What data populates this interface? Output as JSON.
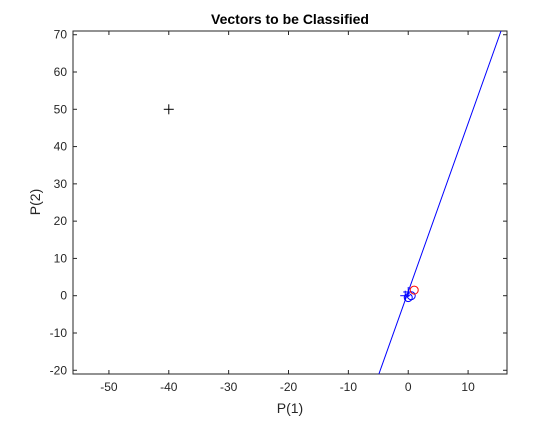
{
  "chart_data": {
    "type": "scatter",
    "title": "Vectors to be Classified",
    "xlabel": "P(1)",
    "ylabel": "P(2)",
    "xlim": [
      -56,
      16.5
    ],
    "ylim": [
      -21,
      71
    ],
    "xticks": [
      -50,
      -40,
      -30,
      -20,
      -10,
      0,
      10
    ],
    "yticks": [
      -20,
      -10,
      0,
      10,
      20,
      30,
      40,
      50,
      60,
      70
    ],
    "grid": false,
    "legend": "none",
    "series": [
      {
        "marker": "plus",
        "color": "#000000",
        "points": [
          [
            -40,
            50
          ]
        ]
      },
      {
        "marker": "plus",
        "color": "#0000ff",
        "points": [
          [
            -0.5,
            0
          ],
          [
            0,
            1
          ]
        ]
      },
      {
        "marker": "circle",
        "color": "#0000ff",
        "points": [
          [
            0,
            -0.5
          ],
          [
            0.5,
            0
          ]
        ]
      },
      {
        "marker": "circle",
        "color": "#ff0000",
        "points": [
          [
            1,
            1.5
          ]
        ]
      }
    ],
    "lines": [
      {
        "color": "#0000ff",
        "points": [
          [
            -4.9,
            -21
          ],
          [
            15.5,
            71
          ]
        ]
      }
    ]
  }
}
